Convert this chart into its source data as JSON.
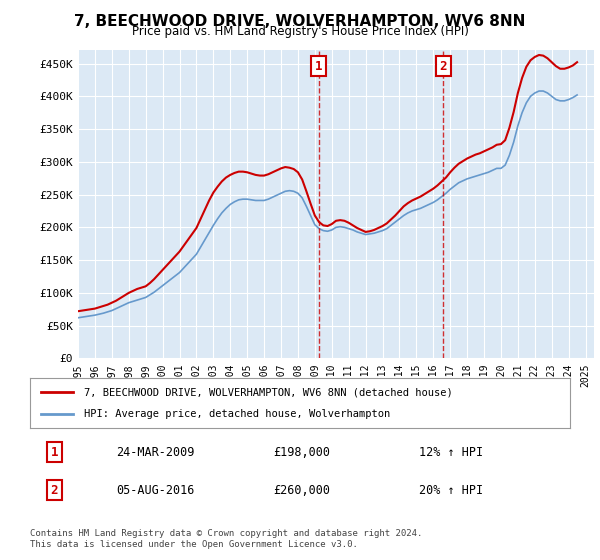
{
  "title": "7, BEECHWOOD DRIVE, WOLVERHAMPTON, WV6 8NN",
  "subtitle": "Price paid vs. HM Land Registry's House Price Index (HPI)",
  "ylabel_ticks": [
    "£0",
    "£50K",
    "£100K",
    "£150K",
    "£200K",
    "£250K",
    "£300K",
    "£350K",
    "£400K",
    "£450K"
  ],
  "ytick_values": [
    0,
    50000,
    100000,
    150000,
    200000,
    250000,
    300000,
    350000,
    400000,
    450000
  ],
  "ylim": [
    0,
    470000
  ],
  "xlim_start": 1995.0,
  "xlim_end": 2025.5,
  "background_color": "#ffffff",
  "plot_bg_color": "#dce9f5",
  "grid_color": "#ffffff",
  "red_line_color": "#cc0000",
  "blue_line_color": "#6699cc",
  "transaction_markers": [
    {
      "x": 2009.23,
      "label": "1",
      "price": 198000,
      "date": "24-MAR-2009",
      "hpi_change": "12% ↑ HPI"
    },
    {
      "x": 2016.59,
      "label": "2",
      "price": 260000,
      "date": "05-AUG-2016",
      "hpi_change": "20% ↑ HPI"
    }
  ],
  "legend_red_label": "7, BEECHWOOD DRIVE, WOLVERHAMPTON, WV6 8NN (detached house)",
  "legend_blue_label": "HPI: Average price, detached house, Wolverhampton",
  "footer_text": "Contains HM Land Registry data © Crown copyright and database right 2024.\nThis data is licensed under the Open Government Licence v3.0.",
  "table_rows": [
    [
      "1",
      "24-MAR-2009",
      "£198,000",
      "12% ↑ HPI"
    ],
    [
      "2",
      "05-AUG-2016",
      "£260,000",
      "20% ↑ HPI"
    ]
  ],
  "hpi_data_x": [
    1995.0,
    1995.25,
    1995.5,
    1995.75,
    1996.0,
    1996.25,
    1996.5,
    1996.75,
    1997.0,
    1997.25,
    1997.5,
    1997.75,
    1998.0,
    1998.25,
    1998.5,
    1998.75,
    1999.0,
    1999.25,
    1999.5,
    1999.75,
    2000.0,
    2000.25,
    2000.5,
    2000.75,
    2001.0,
    2001.25,
    2001.5,
    2001.75,
    2002.0,
    2002.25,
    2002.5,
    2002.75,
    2003.0,
    2003.25,
    2003.5,
    2003.75,
    2004.0,
    2004.25,
    2004.5,
    2004.75,
    2005.0,
    2005.25,
    2005.5,
    2005.75,
    2006.0,
    2006.25,
    2006.5,
    2006.75,
    2007.0,
    2007.25,
    2007.5,
    2007.75,
    2008.0,
    2008.25,
    2008.5,
    2008.75,
    2009.0,
    2009.25,
    2009.5,
    2009.75,
    2010.0,
    2010.25,
    2010.5,
    2010.75,
    2011.0,
    2011.25,
    2011.5,
    2011.75,
    2012.0,
    2012.25,
    2012.5,
    2012.75,
    2013.0,
    2013.25,
    2013.5,
    2013.75,
    2014.0,
    2014.25,
    2014.5,
    2014.75,
    2015.0,
    2015.25,
    2015.5,
    2015.75,
    2016.0,
    2016.25,
    2016.5,
    2016.75,
    2017.0,
    2017.25,
    2017.5,
    2017.75,
    2018.0,
    2018.25,
    2018.5,
    2018.75,
    2019.0,
    2019.25,
    2019.5,
    2019.75,
    2020.0,
    2020.25,
    2020.5,
    2020.75,
    2021.0,
    2021.25,
    2021.5,
    2021.75,
    2022.0,
    2022.25,
    2022.5,
    2022.75,
    2023.0,
    2023.25,
    2023.5,
    2023.75,
    2024.0,
    2024.25,
    2024.5
  ],
  "hpi_data_y": [
    62000,
    63000,
    64000,
    65000,
    66000,
    67500,
    69000,
    71000,
    73000,
    76000,
    79000,
    82000,
    85000,
    87000,
    89000,
    91000,
    93000,
    97000,
    101000,
    106000,
    111000,
    116000,
    121000,
    126000,
    131000,
    138000,
    145000,
    152000,
    159000,
    170000,
    181000,
    192000,
    203000,
    213000,
    222000,
    229000,
    235000,
    239000,
    242000,
    243000,
    243000,
    242000,
    241000,
    241000,
    241000,
    243000,
    246000,
    249000,
    252000,
    255000,
    256000,
    255000,
    252000,
    245000,
    232000,
    218000,
    204000,
    198000,
    195000,
    194000,
    196000,
    200000,
    201000,
    200000,
    198000,
    196000,
    193000,
    191000,
    189000,
    190000,
    191000,
    193000,
    195000,
    198000,
    203000,
    208000,
    213000,
    218000,
    222000,
    225000,
    227000,
    229000,
    232000,
    235000,
    238000,
    242000,
    247000,
    252000,
    258000,
    263000,
    268000,
    271000,
    274000,
    276000,
    278000,
    280000,
    282000,
    284000,
    287000,
    290000,
    290000,
    295000,
    310000,
    330000,
    355000,
    375000,
    390000,
    400000,
    405000,
    408000,
    408000,
    405000,
    400000,
    395000,
    393000,
    393000,
    395000,
    398000,
    402000
  ],
  "red_data_x": [
    1995.0,
    1995.25,
    1995.5,
    1995.75,
    1996.0,
    1996.25,
    1996.5,
    1996.75,
    1997.0,
    1997.25,
    1997.5,
    1997.75,
    1998.0,
    1998.25,
    1998.5,
    1998.75,
    1999.0,
    1999.25,
    1999.5,
    1999.75,
    2000.0,
    2000.25,
    2000.5,
    2000.75,
    2001.0,
    2001.25,
    2001.5,
    2001.75,
    2002.0,
    2002.25,
    2002.5,
    2002.75,
    2003.0,
    2003.25,
    2003.5,
    2003.75,
    2004.0,
    2004.25,
    2004.5,
    2004.75,
    2005.0,
    2005.25,
    2005.5,
    2005.75,
    2006.0,
    2006.25,
    2006.5,
    2006.75,
    2007.0,
    2007.25,
    2007.5,
    2007.75,
    2008.0,
    2008.25,
    2008.5,
    2008.75,
    2009.0,
    2009.25,
    2009.5,
    2009.75,
    2010.0,
    2010.25,
    2010.5,
    2010.75,
    2011.0,
    2011.25,
    2011.5,
    2011.75,
    2012.0,
    2012.25,
    2012.5,
    2012.75,
    2013.0,
    2013.25,
    2013.5,
    2013.75,
    2014.0,
    2014.25,
    2014.5,
    2014.75,
    2015.0,
    2015.25,
    2015.5,
    2015.75,
    2016.0,
    2016.25,
    2016.5,
    2016.75,
    2017.0,
    2017.25,
    2017.5,
    2017.75,
    2018.0,
    2018.25,
    2018.5,
    2018.75,
    2019.0,
    2019.25,
    2019.5,
    2019.75,
    2020.0,
    2020.25,
    2020.5,
    2020.75,
    2021.0,
    2021.25,
    2021.5,
    2021.75,
    2022.0,
    2022.25,
    2022.5,
    2022.75,
    2023.0,
    2023.25,
    2023.5,
    2023.75,
    2024.0,
    2024.25,
    2024.5
  ],
  "red_data_y": [
    72000,
    73000,
    74000,
    75000,
    76000,
    78000,
    80000,
    82000,
    85000,
    88000,
    92000,
    96000,
    100000,
    103000,
    106000,
    108000,
    110000,
    115000,
    121000,
    128000,
    135000,
    142000,
    149000,
    156000,
    163000,
    172000,
    181000,
    190000,
    199000,
    213000,
    227000,
    241000,
    253000,
    262000,
    270000,
    276000,
    280000,
    283000,
    285000,
    285000,
    284000,
    282000,
    280000,
    279000,
    279000,
    281000,
    284000,
    287000,
    290000,
    292000,
    291000,
    289000,
    284000,
    273000,
    255000,
    236000,
    218000,
    208000,
    203000,
    202000,
    205000,
    210000,
    211000,
    210000,
    207000,
    203000,
    199000,
    196000,
    193000,
    194000,
    196000,
    199000,
    202000,
    206000,
    212000,
    218000,
    225000,
    232000,
    237000,
    241000,
    244000,
    247000,
    251000,
    255000,
    259000,
    264000,
    270000,
    276000,
    284000,
    291000,
    297000,
    301000,
    305000,
    308000,
    311000,
    313000,
    316000,
    319000,
    322000,
    326000,
    327000,
    333000,
    352000,
    376000,
    405000,
    428000,
    445000,
    455000,
    460000,
    463000,
    462000,
    458000,
    452000,
    446000,
    442000,
    442000,
    444000,
    447000,
    452000
  ]
}
